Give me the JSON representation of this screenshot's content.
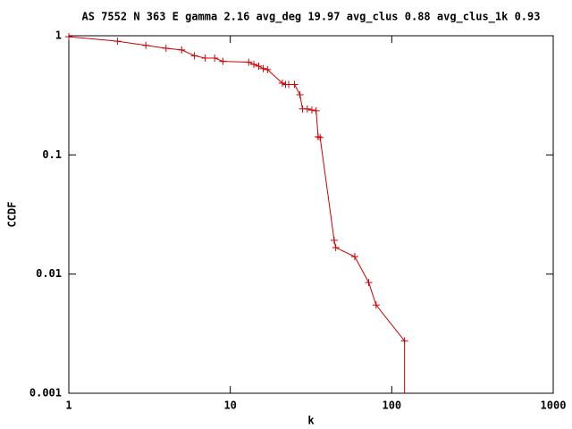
{
  "chart_data": {
    "type": "line",
    "title": "AS 7552 N 363 E gamma 2.16 avg_deg 19.97 avg_clus 0.88 avg_clus_1k 0.93",
    "x_label": "k",
    "y_label": "CCDF",
    "xscale": "log",
    "yscale": "log",
    "xlim": [
      1,
      1000
    ],
    "ylim": [
      0.001,
      1
    ],
    "xticks": [
      1,
      10,
      100,
      1000
    ],
    "yticks": [
      1,
      0.1,
      0.01,
      0.001
    ],
    "grid": false,
    "series": [
      {
        "color": "#cc0000",
        "x": [
          1,
          2,
          3,
          4,
          5,
          6,
          7,
          8,
          9,
          13,
          14,
          15,
          16,
          17,
          21,
          22,
          23,
          25,
          27,
          28,
          30,
          32,
          34,
          35,
          36,
          44,
          45,
          59,
          72,
          80,
          120
        ],
        "values": [
          0.98,
          0.9,
          0.83,
          0.785,
          0.76,
          0.68,
          0.65,
          0.65,
          0.61,
          0.6,
          0.575,
          0.556,
          0.53,
          0.52,
          0.4,
          0.39,
          0.39,
          0.39,
          0.32,
          0.243,
          0.243,
          0.238,
          0.235,
          0.142,
          0.14,
          0.0192,
          0.0167,
          0.014,
          0.0085,
          0.0055,
          0.00275
        ]
      }
    ]
  }
}
